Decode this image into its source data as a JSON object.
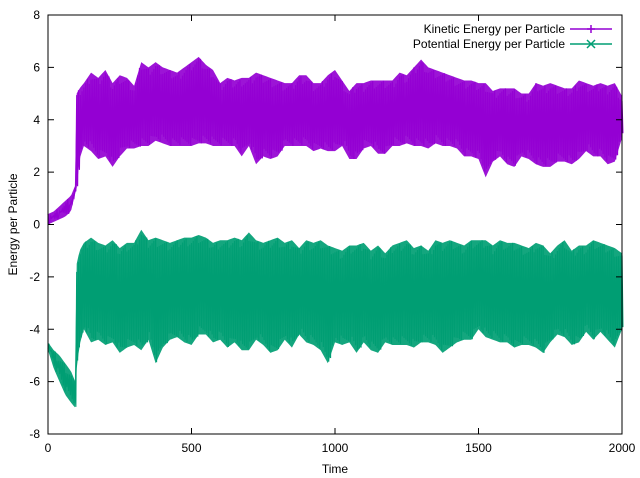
{
  "chart_data": {
    "type": "line",
    "title": "",
    "xlabel": "Time",
    "ylabel": "Energy per Particle",
    "xlim": [
      0,
      2000
    ],
    "ylim": [
      -8,
      8
    ],
    "xticks": [
      0,
      500,
      1000,
      1500,
      2000
    ],
    "yticks": [
      -8,
      -6,
      -4,
      -2,
      0,
      2,
      4,
      6,
      8
    ],
    "grid": false,
    "legend_position": "top-right",
    "series": [
      {
        "name": "Kinetic Energy per Particle",
        "color": "#9400d3",
        "marker": "plus",
        "envelope": {
          "x": [
            0,
            20,
            40,
            60,
            80,
            95,
            100,
            110,
            125,
            150,
            175,
            200,
            225,
            250,
            275,
            300,
            325,
            350,
            375,
            400,
            425,
            450,
            475,
            500,
            525,
            550,
            575,
            600,
            625,
            650,
            675,
            700,
            725,
            750,
            775,
            800,
            825,
            850,
            875,
            900,
            925,
            950,
            975,
            1000,
            1025,
            1050,
            1075,
            1100,
            1125,
            1150,
            1175,
            1200,
            1225,
            1250,
            1275,
            1300,
            1325,
            1350,
            1375,
            1400,
            1425,
            1450,
            1475,
            1500,
            1525,
            1550,
            1575,
            1600,
            1625,
            1650,
            1675,
            1700,
            1725,
            1750,
            1775,
            1800,
            1825,
            1850,
            1875,
            1900,
            1925,
            1950,
            1975,
            2000
          ],
          "max": [
            0.4,
            0.5,
            0.7,
            0.9,
            1.1,
            1.5,
            5.0,
            5.2,
            5.4,
            5.8,
            5.6,
            5.9,
            5.4,
            5.7,
            5.6,
            5.3,
            6.2,
            6.0,
            6.2,
            6.0,
            5.9,
            5.8,
            6.0,
            6.2,
            6.4,
            6.1,
            5.9,
            5.4,
            5.6,
            5.5,
            5.6,
            5.6,
            5.8,
            5.7,
            5.6,
            5.5,
            5.4,
            5.4,
            5.7,
            5.7,
            5.4,
            5.4,
            5.7,
            5.9,
            5.5,
            5.1,
            5.4,
            5.4,
            5.5,
            5.5,
            5.5,
            5.5,
            5.8,
            5.7,
            6.0,
            6.3,
            6.0,
            5.9,
            5.8,
            5.7,
            5.6,
            5.5,
            5.5,
            5.4,
            5.4,
            5.1,
            5.2,
            5.2,
            5.2,
            5.0,
            5.0,
            5.4,
            5.3,
            5.4,
            5.3,
            5.2,
            5.2,
            5.5,
            5.4,
            5.3,
            5.4,
            5.3,
            5.4,
            4.9
          ],
          "min": [
            0.0,
            0.1,
            0.2,
            0.3,
            0.5,
            1.2,
            1.4,
            2.5,
            3.0,
            2.8,
            2.5,
            2.6,
            2.2,
            2.6,
            2.9,
            2.9,
            3.0,
            3.0,
            3.2,
            3.1,
            3.0,
            3.0,
            3.0,
            3.0,
            3.1,
            3.1,
            3.0,
            3.0,
            3.0,
            3.0,
            2.6,
            3.0,
            2.3,
            2.6,
            2.5,
            2.6,
            3.0,
            3.0,
            3.0,
            3.0,
            2.8,
            2.9,
            2.8,
            2.8,
            3.0,
            2.5,
            2.5,
            2.9,
            3.0,
            2.7,
            2.7,
            3.0,
            3.0,
            3.1,
            3.0,
            3.0,
            2.9,
            3.1,
            3.0,
            3.0,
            2.9,
            2.6,
            2.6,
            2.5,
            1.8,
            2.4,
            2.6,
            2.3,
            2.2,
            2.6,
            2.5,
            2.3,
            2.2,
            2.2,
            2.4,
            2.4,
            2.3,
            2.5,
            2.8,
            2.6,
            2.6,
            2.3,
            2.4,
            3.3
          ]
        }
      },
      {
        "name": "Potential Energy per Particle",
        "color": "#009e73",
        "marker": "cross",
        "envelope": {
          "x": [
            0,
            20,
            40,
            60,
            80,
            95,
            100,
            110,
            125,
            150,
            175,
            200,
            225,
            250,
            275,
            300,
            325,
            350,
            375,
            400,
            425,
            450,
            475,
            500,
            525,
            550,
            575,
            600,
            625,
            650,
            675,
            700,
            725,
            750,
            775,
            800,
            825,
            850,
            875,
            900,
            925,
            950,
            975,
            1000,
            1025,
            1050,
            1075,
            1100,
            1125,
            1150,
            1175,
            1200,
            1225,
            1250,
            1275,
            1300,
            1325,
            1350,
            1375,
            1400,
            1425,
            1450,
            1475,
            1500,
            1525,
            1550,
            1575,
            1600,
            1625,
            1650,
            1675,
            1700,
            1725,
            1750,
            1775,
            1800,
            1825,
            1850,
            1875,
            1900,
            1925,
            1950,
            1975,
            2000
          ],
          "max": [
            -4.5,
            -4.8,
            -5.0,
            -5.3,
            -5.6,
            -6.0,
            -1.5,
            -1.0,
            -0.7,
            -0.5,
            -0.7,
            -0.8,
            -0.6,
            -0.9,
            -0.7,
            -0.7,
            -0.2,
            -0.6,
            -0.5,
            -0.6,
            -0.7,
            -0.6,
            -0.5,
            -0.5,
            -0.4,
            -0.5,
            -0.7,
            -0.6,
            -0.6,
            -0.5,
            -0.6,
            -0.3,
            -0.6,
            -0.7,
            -0.6,
            -0.5,
            -0.7,
            -0.6,
            -0.9,
            -0.6,
            -0.7,
            -0.6,
            -0.8,
            -0.9,
            -1.0,
            -0.8,
            -0.8,
            -0.7,
            -1.0,
            -0.8,
            -1.1,
            -0.8,
            -0.7,
            -0.6,
            -0.9,
            -0.8,
            -1.0,
            -0.6,
            -0.7,
            -0.6,
            -0.7,
            -0.8,
            -0.6,
            -0.6,
            -0.6,
            -0.8,
            -0.6,
            -0.7,
            -0.7,
            -0.8,
            -0.9,
            -0.7,
            -0.8,
            -1.1,
            -0.8,
            -0.6,
            -1.0,
            -0.8,
            -0.8,
            -0.6,
            -0.7,
            -0.8,
            -0.9,
            -1.1
          ],
          "min": [
            -4.8,
            -5.5,
            -6.0,
            -6.5,
            -6.8,
            -7.0,
            -5.5,
            -4.6,
            -4.0,
            -4.5,
            -4.4,
            -4.6,
            -4.5,
            -4.9,
            -4.7,
            -4.6,
            -4.8,
            -4.4,
            -5.3,
            -4.7,
            -4.4,
            -4.3,
            -4.5,
            -4.6,
            -4.2,
            -4.2,
            -4.5,
            -4.4,
            -4.7,
            -4.5,
            -4.8,
            -4.8,
            -4.4,
            -4.6,
            -4.9,
            -4.8,
            -4.4,
            -4.7,
            -4.2,
            -4.5,
            -4.6,
            -4.8,
            -5.3,
            -4.5,
            -4.6,
            -4.5,
            -4.9,
            -4.5,
            -4.8,
            -4.9,
            -4.5,
            -4.6,
            -4.6,
            -4.6,
            -4.7,
            -4.5,
            -4.5,
            -4.6,
            -4.9,
            -4.7,
            -4.5,
            -4.4,
            -4.4,
            -4.0,
            -4.3,
            -4.4,
            -4.5,
            -4.5,
            -4.7,
            -4.6,
            -4.6,
            -4.7,
            -4.9,
            -4.5,
            -4.2,
            -4.3,
            -4.6,
            -4.5,
            -4.1,
            -4.4,
            -4.1,
            -4.4,
            -4.7,
            -4.0
          ]
        }
      }
    ]
  }
}
